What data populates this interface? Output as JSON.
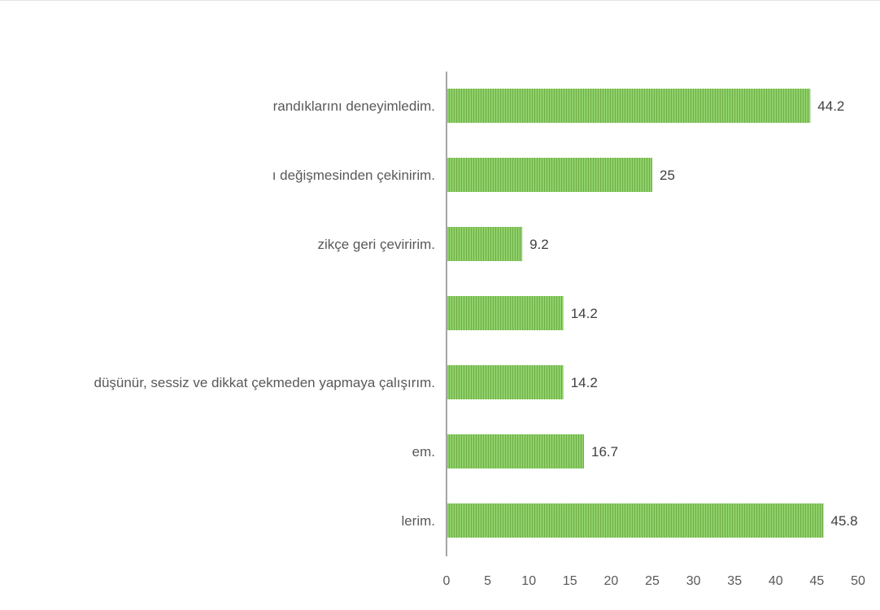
{
  "chart_data": {
    "type": "bar",
    "orientation": "horizontal",
    "categories": [
      "randıklarını deneyimledim.",
      "ı değişmesinden çekinirim.",
      "zikçe geri çeviririm.",
      "",
      "düşünür, sessiz ve dikkat çekmeden yapmaya çalışırım.",
      "em.",
      "lerim."
    ],
    "values": [
      44.2,
      25,
      9.2,
      14.2,
      14.2,
      16.7,
      45.8
    ],
    "data_labels": [
      "44.2",
      "25",
      "9.2",
      "14.2",
      "14.2",
      "16.7",
      "45.8"
    ],
    "xlim": [
      0,
      50
    ],
    "xticks": [
      "0",
      "5",
      "10",
      "15",
      "20",
      "25",
      "30",
      "35",
      "40",
      "45",
      "50"
    ],
    "grid": false,
    "legend": "none",
    "title": "",
    "xlabel": "",
    "ylabel": "",
    "colors": {
      "bar": "#8fd16a",
      "bar_stripe": "#70ad47",
      "axis": "#a6a6a6"
    }
  }
}
